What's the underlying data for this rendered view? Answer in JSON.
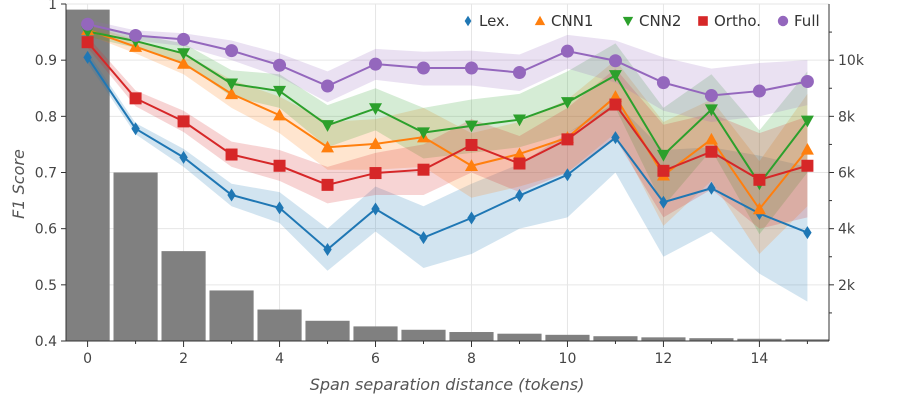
{
  "chart_data": {
    "type": "line",
    "xlabel": "Span separation distance (tokens)",
    "ylabel": "F1 Score",
    "xlim": [
      -0.45,
      15.45
    ],
    "ylim": [
      0.4,
      1.0
    ],
    "x_ticks": [
      "0",
      "2",
      "4",
      "6",
      "8",
      "10",
      "12",
      "14"
    ],
    "y_ticks": [
      "0.4",
      "0.5",
      "0.6",
      "0.7",
      "0.8",
      "0.9",
      "1"
    ],
    "grid": true,
    "legend_position": "top-right",
    "x": [
      0,
      1,
      2,
      3,
      4,
      5,
      6,
      7,
      8,
      9,
      10,
      11,
      12,
      13,
      14,
      15
    ],
    "series": [
      {
        "name": "Lex.",
        "color": "#1f77b4",
        "marker": "diamond",
        "values": [
          0.905,
          0.778,
          0.727,
          0.66,
          0.637,
          0.563,
          0.635,
          0.584,
          0.619,
          0.659,
          0.696,
          0.762,
          0.647,
          0.672,
          0.627,
          0.593
        ],
        "ci_lower": [
          0.895,
          0.768,
          0.71,
          0.64,
          0.61,
          0.525,
          0.595,
          0.53,
          0.555,
          0.6,
          0.62,
          0.7,
          0.55,
          0.595,
          0.52,
          0.47
        ],
        "ci_upper": [
          0.915,
          0.788,
          0.742,
          0.68,
          0.665,
          0.6,
          0.675,
          0.64,
          0.68,
          0.715,
          0.77,
          0.825,
          0.74,
          0.745,
          0.73,
          0.71
        ]
      },
      {
        "name": "CNN1",
        "color": "#ff7f0e",
        "marker": "triangle-up",
        "values": [
          0.954,
          0.924,
          0.894,
          0.84,
          0.802,
          0.745,
          0.751,
          0.763,
          0.712,
          0.733,
          0.762,
          0.835,
          0.695,
          0.759,
          0.635,
          0.741
        ],
        "ci_lower": [
          0.945,
          0.912,
          0.875,
          0.815,
          0.77,
          0.705,
          0.705,
          0.71,
          0.655,
          0.675,
          0.7,
          0.77,
          0.605,
          0.685,
          0.555,
          0.64
        ],
        "ci_upper": [
          0.963,
          0.936,
          0.912,
          0.865,
          0.835,
          0.79,
          0.795,
          0.815,
          0.77,
          0.79,
          0.83,
          0.9,
          0.79,
          0.83,
          0.72,
          0.84
        ]
      },
      {
        "name": "CNN2",
        "color": "#2ca02c",
        "marker": "triangle-down",
        "values": [
          0.951,
          0.934,
          0.912,
          0.858,
          0.845,
          0.784,
          0.814,
          0.771,
          0.783,
          0.794,
          0.825,
          0.873,
          0.731,
          0.812,
          0.68,
          0.792
        ],
        "ci_lower": [
          0.942,
          0.922,
          0.895,
          0.835,
          0.815,
          0.745,
          0.775,
          0.725,
          0.735,
          0.745,
          0.77,
          0.815,
          0.64,
          0.74,
          0.59,
          0.7
        ],
        "ci_upper": [
          0.96,
          0.946,
          0.93,
          0.882,
          0.875,
          0.82,
          0.85,
          0.815,
          0.83,
          0.84,
          0.88,
          0.93,
          0.815,
          0.875,
          0.775,
          0.88
        ]
      },
      {
        "name": "Ortho.",
        "color": "#d62728",
        "marker": "square",
        "values": [
          0.932,
          0.832,
          0.791,
          0.732,
          0.712,
          0.678,
          0.699,
          0.705,
          0.749,
          0.716,
          0.759,
          0.821,
          0.703,
          0.737,
          0.687,
          0.712
        ],
        "ci_lower": [
          0.922,
          0.818,
          0.772,
          0.71,
          0.685,
          0.645,
          0.66,
          0.66,
          0.7,
          0.665,
          0.7,
          0.76,
          0.62,
          0.67,
          0.6,
          0.62
        ],
        "ci_upper": [
          0.942,
          0.846,
          0.81,
          0.755,
          0.74,
          0.71,
          0.735,
          0.75,
          0.795,
          0.765,
          0.815,
          0.885,
          0.785,
          0.805,
          0.77,
          0.8
        ]
      },
      {
        "name": "Full",
        "color": "#9467bd",
        "marker": "circle",
        "values": [
          0.964,
          0.944,
          0.937,
          0.917,
          0.891,
          0.854,
          0.893,
          0.886,
          0.886,
          0.878,
          0.916,
          0.899,
          0.86,
          0.837,
          0.845,
          0.862
        ],
        "ci_lower": [
          0.956,
          0.935,
          0.925,
          0.9,
          0.87,
          0.825,
          0.865,
          0.855,
          0.855,
          0.845,
          0.885,
          0.86,
          0.81,
          0.79,
          0.8,
          0.82
        ],
        "ci_upper": [
          0.972,
          0.953,
          0.948,
          0.935,
          0.912,
          0.88,
          0.92,
          0.915,
          0.917,
          0.91,
          0.945,
          0.935,
          0.905,
          0.885,
          0.895,
          0.9
        ]
      }
    ],
    "histogram": {
      "secondary_axis_ticks": [
        "2k",
        "4k",
        "6k",
        "8k",
        "10k"
      ],
      "secondary_axis_ticks_values": [
        2000,
        4000,
        6000,
        8000,
        10000
      ],
      "secondary_axis_max": 12000,
      "counts": [
        11800,
        6000,
        3200,
        1800,
        1120,
        720,
        520,
        400,
        320,
        260,
        220,
        170,
        130,
        100,
        80,
        60
      ],
      "color": "#808080"
    }
  }
}
